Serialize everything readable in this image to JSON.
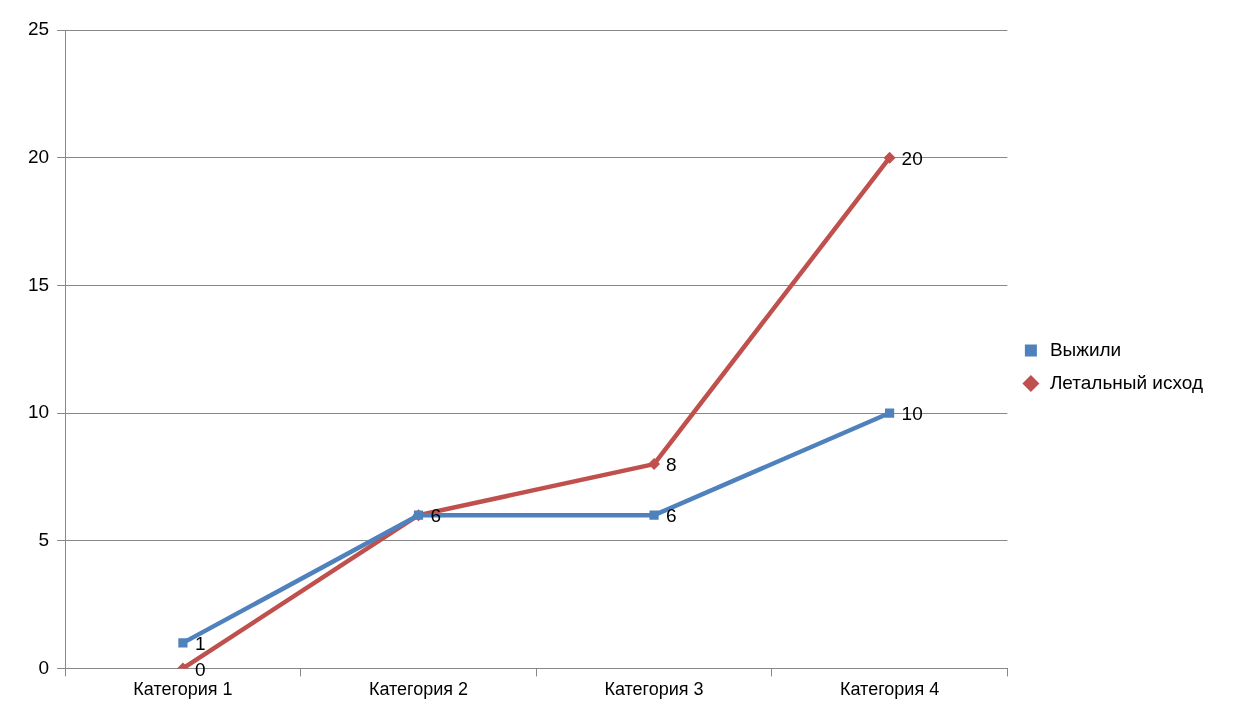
{
  "chart_data": {
    "type": "line",
    "categories": [
      "Категория 1",
      "Категория 2",
      "Категория 3",
      "Категория 4"
    ],
    "series": [
      {
        "name": "Выжили",
        "color": "#4f81bd",
        "values": [
          1,
          6,
          6,
          10
        ],
        "marker": "square",
        "value_labels": [
          "1",
          "6",
          "6",
          "10"
        ]
      },
      {
        "name": "Летальный исход",
        "color": "#c0504d",
        "values": [
          0,
          6,
          8,
          20
        ],
        "marker": "diamond",
        "value_labels": [
          "0",
          null,
          "8",
          "20"
        ]
      }
    ],
    "ylim": [
      0,
      25
    ],
    "yticks": [
      0,
      5,
      10,
      15,
      20,
      25
    ],
    "grid": "y",
    "legend": "right",
    "line_style": "solid"
  }
}
